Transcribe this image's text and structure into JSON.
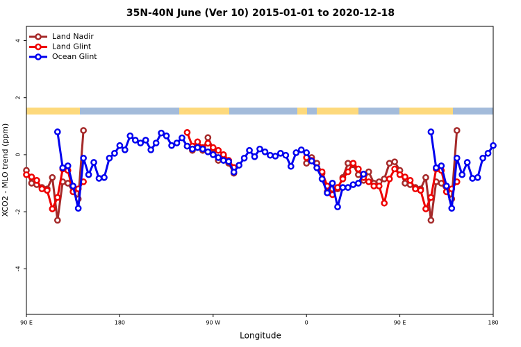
{
  "chart_data": {
    "type": "line",
    "title": "35N-40N June (Ver 10)   2015-01-01 to 2020-12-18",
    "xlabel": "Longitude",
    "ylabel": "XCO2 - MLO trend (ppm)",
    "xlim": [
      90,
      540
    ],
    "ylim": [
      -5.6,
      4.5
    ],
    "xticks": [
      {
        "value": 90,
        "label": "90 E"
      },
      180,
      {
        "value": 270,
        "label": "90 W"
      },
      {
        "value": 360,
        "label": "0"
      },
      {
        "value": 450,
        "label": "90 E"
      },
      {
        "value": 540,
        "label": "180"
      }
    ],
    "yticks": [
      -4,
      -2,
      0,
      2,
      4
    ],
    "legend": "top-left",
    "series": [
      {
        "name": "Land Nadir",
        "color": "#a52a2a",
        "x": [
          90,
          95,
          100,
          105,
          110,
          115,
          120,
          125,
          130,
          135,
          140,
          145,
          200,
          245,
          250,
          255,
          260,
          265,
          270,
          275,
          280,
          285,
          290,
          325,
          360,
          365,
          370,
          375,
          380,
          385,
          390,
          395,
          400,
          405,
          410,
          415,
          420,
          425,
          430,
          435,
          440,
          445,
          450,
          455,
          460,
          465,
          470,
          475,
          480,
          485,
          490,
          495,
          500,
          505
        ],
        "values": [
          -0.55,
          -1.0,
          -1.05,
          -1.15,
          -1.2,
          -0.8,
          -2.3,
          -0.95,
          -1.0,
          -1.3,
          -1.55,
          0.85,
          null,
          0.3,
          0.15,
          0.3,
          0.15,
          0.6,
          0.2,
          -0.2,
          -0.05,
          -0.3,
          -0.65,
          null,
          -0.3,
          -0.1,
          -0.3,
          -0.65,
          -1.3,
          -1.2,
          -1.2,
          -0.8,
          -0.3,
          -0.35,
          -0.7,
          -0.9,
          -0.6,
          -1.0,
          -0.95,
          -0.85,
          -0.3,
          -0.25,
          -0.55,
          -1.0,
          -1.05,
          -1.15,
          -1.2,
          -0.8,
          -2.3,
          -0.95,
          -1.0,
          -1.3,
          -1.55,
          0.85
        ]
      },
      {
        "name": "Land Glint",
        "color": "#ee0000",
        "x": [
          90,
          95,
          100,
          105,
          110,
          115,
          120,
          125,
          130,
          135,
          140,
          145,
          200,
          245,
          250,
          255,
          260,
          265,
          270,
          275,
          280,
          285,
          290,
          325,
          360,
          365,
          370,
          375,
          380,
          385,
          390,
          395,
          400,
          405,
          410,
          415,
          420,
          425,
          430,
          435,
          440,
          445,
          450,
          455,
          460,
          465,
          470,
          475,
          480,
          485,
          490,
          495,
          500,
          505
        ],
        "values": [
          -0.7,
          -0.78,
          -0.9,
          -1.2,
          -1.25,
          -1.9,
          -1.5,
          -0.5,
          -0.55,
          -1.3,
          -1.2,
          -0.95,
          null,
          0.78,
          0.3,
          0.45,
          0.25,
          0.4,
          0.25,
          0.15,
          0.0,
          -0.2,
          -0.45,
          null,
          -0.1,
          -0.2,
          -0.45,
          -0.6,
          -1.1,
          -1.4,
          -1.15,
          -0.85,
          -0.6,
          -0.3,
          -0.5,
          -0.8,
          -0.95,
          -1.1,
          -1.1,
          -1.7,
          -0.85,
          -0.5,
          -0.7,
          -0.78,
          -0.9,
          -1.2,
          -1.25,
          -1.9,
          -1.5,
          -0.5,
          -0.55,
          -1.3,
          -1.2,
          -0.95
        ]
      },
      {
        "name": "Ocean Glint",
        "color": "#0000ee",
        "x": [
          120,
          125,
          130,
          135,
          140,
          145,
          150,
          155,
          160,
          165,
          170,
          175,
          180,
          185,
          190,
          195,
          200,
          205,
          210,
          215,
          220,
          225,
          230,
          235,
          240,
          245,
          250,
          255,
          260,
          265,
          270,
          275,
          280,
          285,
          290,
          295,
          300,
          305,
          310,
          315,
          320,
          325,
          330,
          335,
          340,
          345,
          350,
          355,
          360,
          365,
          370,
          375,
          380,
          385,
          390,
          395,
          400,
          405,
          410,
          415,
          450,
          480,
          485,
          490,
          495,
          500,
          505,
          510,
          515,
          520,
          525,
          530,
          535,
          540
        ],
        "values": [
          0.8,
          -0.46,
          -0.39,
          -1.1,
          -1.88,
          -0.12,
          -0.7,
          -0.27,
          -0.83,
          -0.8,
          -0.12,
          0.05,
          0.32,
          0.17,
          0.66,
          0.51,
          0.41,
          0.51,
          0.17,
          0.41,
          0.76,
          0.66,
          0.32,
          0.41,
          0.59,
          0.3,
          0.2,
          0.25,
          0.2,
          0.1,
          0.0,
          -0.1,
          -0.2,
          -0.24,
          -0.61,
          -0.37,
          -0.12,
          0.15,
          -0.07,
          0.2,
          0.1,
          -0.02,
          -0.05,
          0.05,
          -0.02,
          -0.41,
          0.07,
          0.17,
          0.07,
          -0.22,
          -0.46,
          -0.85,
          -1.34,
          -1.0,
          -1.83,
          -1.15,
          -1.15,
          -1.05,
          -1.0,
          -0.68,
          null,
          0.8,
          -0.46,
          -0.39,
          -1.1,
          -1.88,
          -0.12,
          -0.7,
          -0.27,
          -0.83,
          -0.8,
          -0.12,
          0.05,
          0.32
        ]
      }
    ]
  }
}
